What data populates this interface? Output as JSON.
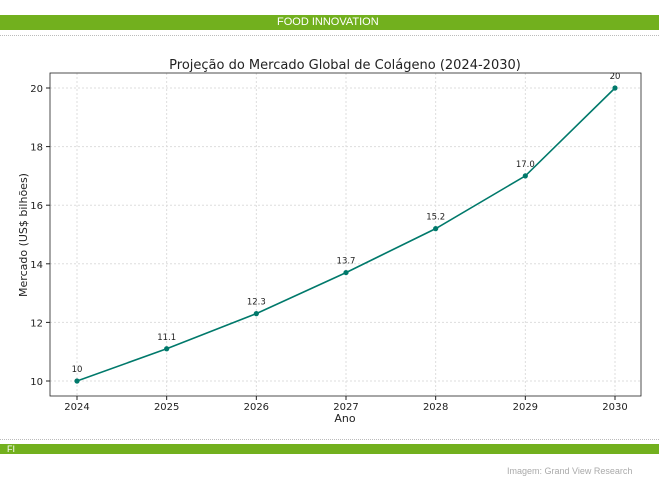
{
  "header": {
    "section": "FOOD INNOVATION"
  },
  "footer": {
    "logo": "FI",
    "credit": "Imagem: Grand View Research"
  },
  "colors": {
    "brand": "#72b01e",
    "line": "#00796b"
  },
  "chart_data": {
    "type": "line",
    "title": "Projeção do Mercado Global de Colágeno (2024-2030)",
    "xlabel": "Ano",
    "ylabel": "Mercado (US$ bilhões)",
    "x": [
      2024,
      2025,
      2026,
      2027,
      2028,
      2029,
      2030
    ],
    "values": [
      10,
      11.1,
      12.3,
      13.7,
      15.2,
      17.0,
      20
    ],
    "data_labels": [
      "10",
      "11.1",
      "12.3",
      "13.7",
      "15.2",
      "17.0",
      "20"
    ],
    "xticks": [
      "2024",
      "2025",
      "2026",
      "2027",
      "2028",
      "2029",
      "2030"
    ],
    "yticks": [
      "10",
      "12",
      "14",
      "16",
      "18",
      "20"
    ],
    "ylim": [
      9.6,
      20.5
    ],
    "grid": true
  }
}
